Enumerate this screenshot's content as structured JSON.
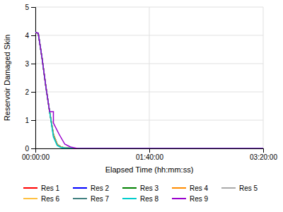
{
  "chart_data": {
    "type": "line",
    "xlabel": "Elapsed Time (hh:mm:ss)",
    "ylabel": "Reservoir Damaged Skin",
    "xlim": [
      0,
      12000
    ],
    "ylim": [
      0,
      5
    ],
    "xticks": [
      {
        "value": 0,
        "label": "00:00:00"
      },
      {
        "value": 6000,
        "label": "01:40:00"
      },
      {
        "value": 12000,
        "label": "03:20:00"
      }
    ],
    "yticks": [
      0,
      1,
      2,
      3,
      4,
      5
    ],
    "grid": true,
    "legend": "bottom",
    "series": [
      {
        "name": "Res 1",
        "color": "#ff0000",
        "x": [
          0,
          150,
          350,
          550,
          750,
          950,
          1150,
          1350,
          1550,
          1750,
          2000,
          12000
        ],
        "values": [
          4.1,
          4.08,
          3.2,
          2.2,
          1.3,
          0.5,
          0.15,
          0.05,
          0.02,
          0.01,
          0.0,
          0.0
        ]
      },
      {
        "name": "Res 2",
        "color": "#0000ff",
        "x": [
          0,
          150,
          350,
          550,
          750,
          950,
          1150,
          1350,
          1550,
          1750,
          2000,
          12000
        ],
        "values": [
          4.1,
          4.08,
          3.2,
          2.2,
          1.3,
          0.5,
          0.15,
          0.05,
          0.02,
          0.01,
          0.0,
          0.0
        ]
      },
      {
        "name": "Res 3",
        "color": "#008000",
        "x": [
          0,
          150,
          350,
          550,
          750,
          950,
          1150,
          1350,
          1550,
          1750,
          2000,
          12000
        ],
        "values": [
          4.1,
          4.08,
          3.2,
          2.2,
          1.3,
          0.5,
          0.15,
          0.05,
          0.02,
          0.01,
          0.0,
          0.0
        ]
      },
      {
        "name": "Res 4",
        "color": "#ff8c00",
        "x": [
          0,
          150,
          350,
          550,
          750,
          950,
          1150,
          1350,
          1550,
          1750,
          2000,
          12000
        ],
        "values": [
          4.1,
          4.08,
          3.2,
          2.2,
          1.3,
          0.5,
          0.15,
          0.05,
          0.02,
          0.01,
          0.0,
          0.0
        ]
      },
      {
        "name": "Res 5",
        "color": "#aaaaaa",
        "x": [
          0,
          150,
          350,
          550,
          750,
          950,
          1150,
          1350,
          1550,
          1750,
          2000,
          12000
        ],
        "values": [
          4.1,
          4.08,
          3.2,
          2.2,
          1.3,
          0.5,
          0.15,
          0.05,
          0.02,
          0.01,
          0.0,
          0.0
        ]
      },
      {
        "name": "Res 6",
        "color": "#ffc040",
        "x": [
          0,
          150,
          350,
          550,
          750,
          950,
          1150,
          1350,
          1550,
          1750,
          2000,
          12000
        ],
        "values": [
          4.1,
          4.08,
          3.2,
          2.2,
          1.3,
          0.5,
          0.15,
          0.05,
          0.02,
          0.01,
          0.0,
          0.0
        ]
      },
      {
        "name": "Res 7",
        "color": "#408080",
        "x": [
          0,
          150,
          350,
          550,
          750,
          950,
          1150,
          1350,
          1550,
          1750,
          2000,
          12000
        ],
        "values": [
          4.1,
          4.08,
          3.2,
          2.2,
          1.3,
          0.45,
          0.12,
          0.04,
          0.02,
          0.01,
          0.0,
          0.0
        ]
      },
      {
        "name": "Res 8",
        "color": "#00cccc",
        "x": [
          0,
          150,
          350,
          550,
          750,
          950,
          1150,
          1350,
          1550,
          1750,
          2000,
          12000
        ],
        "values": [
          4.1,
          4.08,
          3.2,
          2.2,
          1.3,
          0.4,
          0.1,
          0.03,
          0.01,
          0.0,
          0.0,
          0.0
        ]
      },
      {
        "name": "Res 9",
        "color": "#9900cc",
        "x": [
          0,
          150,
          350,
          550,
          750,
          950,
          950,
          1250,
          1550,
          1850,
          2200,
          12000
        ],
        "values": [
          4.1,
          4.08,
          3.2,
          2.2,
          1.3,
          1.3,
          0.9,
          0.5,
          0.15,
          0.05,
          0.0,
          0.0
        ]
      }
    ]
  }
}
